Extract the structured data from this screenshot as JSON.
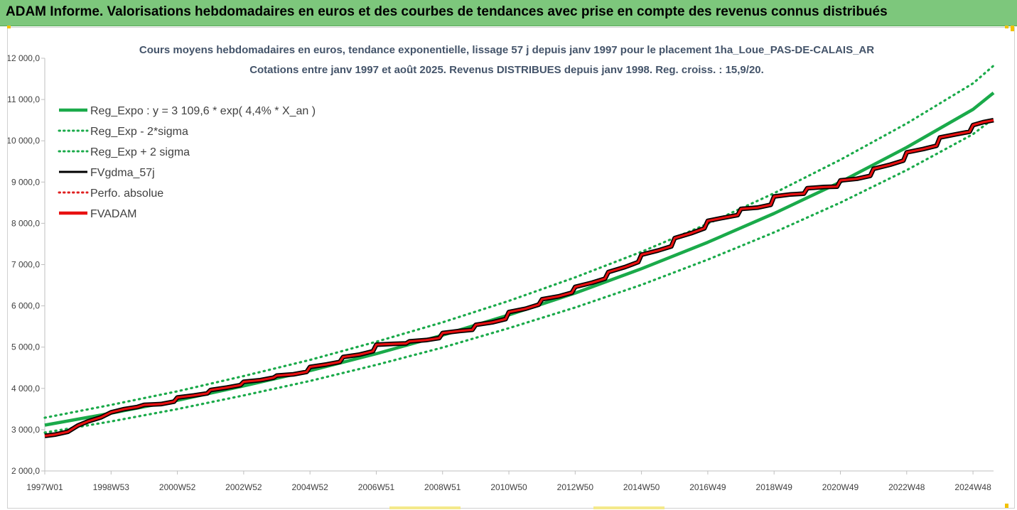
{
  "header": {
    "title": "ADAM Informe. Valorisations hebdomadaires en euros et des courbes de tendances avec prise en compte des revenus connus distribués"
  },
  "chart_data": {
    "type": "line",
    "title": [
      "Cours moyens hebdomadaires en euros, tendance exponentielle, lissage 57 j depuis janv 1997 pour le placement 1ha_Loue_PAS-DE-CALAIS_AR",
      "Cotations entre janv 1997 et août 2025. Revenus DISTRIBUES depuis janv 1998. Reg. croiss. : 15,9/20."
    ],
    "xlabel": "",
    "ylabel": "",
    "x_range": [
      1997.0,
      2025.62
    ],
    "x_ticks": [
      {
        "label": "1997W01",
        "x": 1997.0
      },
      {
        "label": "1998W53",
        "x": 1999.0
      },
      {
        "label": "2000W52",
        "x": 2001.0
      },
      {
        "label": "2002W52",
        "x": 2003.0
      },
      {
        "label": "2004W52",
        "x": 2005.0
      },
      {
        "label": "2006W51",
        "x": 2007.0
      },
      {
        "label": "2008W51",
        "x": 2009.0
      },
      {
        "label": "2010W50",
        "x": 2011.0
      },
      {
        "label": "2012W50",
        "x": 2013.0
      },
      {
        "label": "2014W50",
        "x": 2015.0
      },
      {
        "label": "2016W49",
        "x": 2017.0
      },
      {
        "label": "2018W49",
        "x": 2019.0
      },
      {
        "label": "2020W49",
        "x": 2021.0
      },
      {
        "label": "2022W48",
        "x": 2023.0
      },
      {
        "label": "2024W48",
        "x": 2025.0
      }
    ],
    "ylim": [
      2000,
      12000
    ],
    "y_ticks": [
      {
        "label": "2 000,0",
        "y": 2000
      },
      {
        "label": "3 000,0",
        "y": 3000
      },
      {
        "label": "4 000,0",
        "y": 4000
      },
      {
        "label": "5 000,0",
        "y": 5000
      },
      {
        "label": "6 000,0",
        "y": 6000
      },
      {
        "label": "7 000,0",
        "y": 7000
      },
      {
        "label": "8 000,0",
        "y": 8000
      },
      {
        "label": "9 000,0",
        "y": 9000
      },
      {
        "label": "10 000,0",
        "y": 10000
      },
      {
        "label": "11 000,0",
        "y": 11000
      },
      {
        "label": "12 000,0",
        "y": 12000
      }
    ],
    "grid": false,
    "legend_position": "top-left",
    "legend": [
      {
        "label": "Reg_Expo : y = 3 109,6 * exp( 4,4% *  X_an )",
        "color": "#1aaa4a",
        "style": "solid-thick"
      },
      {
        "label": "Reg_Exp - 2*sigma",
        "color": "#1aaa4a",
        "style": "dotted"
      },
      {
        "label": "Reg_Exp + 2 sigma",
        "color": "#1aaa4a",
        "style": "dotted"
      },
      {
        "label": "FVgdma_57j",
        "color": "#000000",
        "style": "solid"
      },
      {
        "label": "Perfo. absolue",
        "color": "#e02020",
        "style": "dotted"
      },
      {
        "label": "FVADAM",
        "color": "#e81010",
        "style": "solid-thick"
      }
    ],
    "series": [
      {
        "name": "Reg_Expo : y = 3 109,6 * exp( 4,4% *  X_an )",
        "color": "#1aaa4a",
        "x": [
          1997,
          1999,
          2001,
          2003,
          2005,
          2007,
          2009,
          2011,
          2013,
          2015,
          2017,
          2019,
          2021,
          2023,
          2025,
          2025.62
        ],
        "y": [
          3110,
          3400,
          3710,
          4060,
          4430,
          4840,
          5290,
          5780,
          6310,
          6900,
          7540,
          8240,
          9000,
          9840,
          10760,
          11160
        ]
      },
      {
        "name": "Reg_Exp - 2*sigma",
        "color": "#1aaa4a",
        "x": [
          1997,
          1999,
          2001,
          2003,
          2005,
          2007,
          2009,
          2011,
          2013,
          2015,
          2017,
          2019,
          2021,
          2023,
          2025,
          2025.62
        ],
        "y": [
          2930,
          3200,
          3500,
          3830,
          4180,
          4570,
          4990,
          5460,
          5960,
          6510,
          7120,
          7780,
          8500,
          9290,
          10160,
          10540
        ]
      },
      {
        "name": "Reg_Exp + 2 sigma",
        "color": "#1aaa4a",
        "x": [
          1997,
          1999,
          2001,
          2003,
          2005,
          2007,
          2009,
          2011,
          2013,
          2015,
          2017,
          2019,
          2021,
          2023,
          2025,
          2025.62
        ],
        "y": [
          3290,
          3600,
          3930,
          4300,
          4690,
          5130,
          5600,
          6120,
          6690,
          7310,
          7990,
          8730,
          9540,
          10420,
          11390,
          11820
        ]
      },
      {
        "name": "FVgdma_57j",
        "color": "#000000",
        "x": [
          1997.0,
          1997.3,
          1997.7,
          1998.0,
          1998.3,
          1998.7,
          1999.0,
          1999.4,
          1999.8,
          2000.0,
          2000.5,
          2000.9,
          2001.0,
          2001.5,
          2001.9,
          2002.0,
          2002.5,
          2002.9,
          2003.0,
          2003.5,
          2003.9,
          2004.0,
          2004.5,
          2004.9,
          2005.0,
          2005.5,
          2005.9,
          2006.0,
          2006.5,
          2006.9,
          2007.0,
          2007.5,
          2007.9,
          2008.0,
          2008.5,
          2008.9,
          2009.0,
          2009.5,
          2009.9,
          2010.0,
          2010.5,
          2010.9,
          2011.0,
          2011.5,
          2011.9,
          2012.0,
          2012.5,
          2012.9,
          2013.0,
          2013.5,
          2013.9,
          2014.0,
          2014.5,
          2014.9,
          2015.0,
          2015.5,
          2015.9,
          2016.0,
          2016.5,
          2016.9,
          2017.0,
          2017.5,
          2017.9,
          2018.0,
          2018.5,
          2018.9,
          2019.0,
          2019.5,
          2019.9,
          2020.0,
          2020.5,
          2020.9,
          2021.0,
          2021.5,
          2021.9,
          2022.0,
          2022.5,
          2022.9,
          2023.0,
          2023.5,
          2023.9,
          2024.0,
          2024.5,
          2024.9,
          2025.0,
          2025.3,
          2025.62
        ],
        "y": [
          2850,
          2880,
          2950,
          3100,
          3200,
          3300,
          3420,
          3500,
          3550,
          3600,
          3620,
          3680,
          3780,
          3830,
          3880,
          3960,
          4020,
          4080,
          4160,
          4200,
          4260,
          4310,
          4340,
          4400,
          4520,
          4580,
          4640,
          4760,
          4820,
          4900,
          5060,
          5080,
          5090,
          5140,
          5170,
          5220,
          5340,
          5390,
          5420,
          5540,
          5600,
          5680,
          5850,
          5930,
          6030,
          6160,
          6230,
          6320,
          6460,
          6560,
          6660,
          6820,
          6940,
          7060,
          7240,
          7340,
          7440,
          7640,
          7760,
          7880,
          8060,
          8140,
          8200,
          8350,
          8380,
          8450,
          8650,
          8700,
          8720,
          8850,
          8880,
          8890,
          9040,
          9080,
          9150,
          9320,
          9420,
          9520,
          9720,
          9800,
          9880,
          10080,
          10160,
          10220,
          10380,
          10450,
          10500
        ]
      },
      {
        "name": "FVADAM",
        "color": "#e81010",
        "x": [
          1997.0,
          1997.3,
          1997.7,
          1998.0,
          1998.3,
          1998.7,
          1999.0,
          1999.4,
          1999.8,
          2000.0,
          2000.5,
          2000.9,
          2001.0,
          2001.5,
          2001.9,
          2002.0,
          2002.5,
          2002.9,
          2003.0,
          2003.5,
          2003.9,
          2004.0,
          2004.5,
          2004.9,
          2005.0,
          2005.5,
          2005.9,
          2006.0,
          2006.5,
          2006.9,
          2007.0,
          2007.5,
          2007.9,
          2008.0,
          2008.5,
          2008.9,
          2009.0,
          2009.5,
          2009.9,
          2010.0,
          2010.5,
          2010.9,
          2011.0,
          2011.5,
          2011.9,
          2012.0,
          2012.5,
          2012.9,
          2013.0,
          2013.5,
          2013.9,
          2014.0,
          2014.5,
          2014.9,
          2015.0,
          2015.5,
          2015.9,
          2016.0,
          2016.5,
          2016.9,
          2017.0,
          2017.5,
          2017.9,
          2018.0,
          2018.5,
          2018.9,
          2019.0,
          2019.5,
          2019.9,
          2020.0,
          2020.5,
          2020.9,
          2021.0,
          2021.5,
          2021.9,
          2022.0,
          2022.5,
          2022.9,
          2023.0,
          2023.5,
          2023.9,
          2024.0,
          2024.5,
          2024.9,
          2025.0,
          2025.3,
          2025.62
        ],
        "y": [
          2850,
          2880,
          2950,
          3100,
          3200,
          3300,
          3420,
          3500,
          3550,
          3600,
          3620,
          3680,
          3780,
          3830,
          3880,
          3960,
          4020,
          4080,
          4160,
          4200,
          4260,
          4310,
          4340,
          4400,
          4520,
          4580,
          4640,
          4760,
          4820,
          4900,
          5060,
          5080,
          5090,
          5140,
          5170,
          5220,
          5340,
          5390,
          5420,
          5540,
          5600,
          5680,
          5850,
          5930,
          6030,
          6160,
          6230,
          6320,
          6460,
          6560,
          6660,
          6820,
          6940,
          7060,
          7240,
          7340,
          7440,
          7640,
          7760,
          7880,
          8060,
          8140,
          8200,
          8350,
          8380,
          8450,
          8650,
          8700,
          8720,
          8850,
          8880,
          8890,
          9040,
          9080,
          9150,
          9320,
          9420,
          9520,
          9720,
          9800,
          9880,
          10080,
          10160,
          10220,
          10380,
          10450,
          10500
        ]
      }
    ]
  }
}
